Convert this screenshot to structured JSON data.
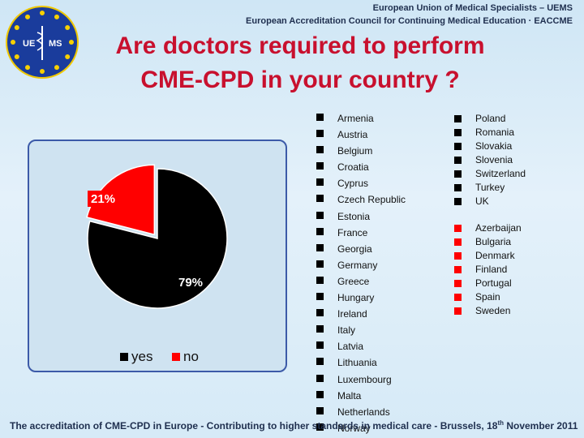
{
  "header": {
    "org_line1": "European Union of Medical Specialists – UEMS",
    "org_line2": "European Accreditation Council for Continuing Medical Education · EACCME",
    "logo_text_left": "UE",
    "logo_text_right": "MS"
  },
  "title": {
    "line1": "Are doctors required to perform",
    "line2": "CME-CPD in your country ?"
  },
  "chart_data": {
    "type": "pie",
    "slices": [
      {
        "name": "yes",
        "value": 79,
        "label": "79%",
        "color": "#000000"
      },
      {
        "name": "no",
        "value": 21,
        "label": "21%",
        "color": "#ff0000"
      }
    ],
    "legend": [
      "yes",
      "no"
    ],
    "legend_position": "bottom"
  },
  "countries": {
    "yes_col1": [
      "Armenia",
      "Austria",
      "Belgium",
      "Croatia",
      "Cyprus",
      "Czech Republic",
      "Estonia",
      "France",
      "Georgia",
      "Germany",
      "Greece",
      "Hungary",
      "Ireland",
      "Italy",
      "Latvia",
      "Lithuania",
      "Luxembourg",
      "Malta",
      "Netherlands",
      "Norway"
    ],
    "yes_col2": [
      "Poland",
      "Romania",
      "Slovakia",
      "Slovenia",
      "Switzerland",
      "Turkey",
      "UK"
    ],
    "no": [
      "Azerbaijan",
      "Bulgaria",
      "Denmark",
      "Finland",
      "Portugal",
      "Spain",
      "Sweden"
    ]
  },
  "colors": {
    "yes": "#000000",
    "no": "#ff0000",
    "title": "#c8102e"
  },
  "footer": {
    "text_before": "The accreditation of CME-CPD in Europe - Contributing to higher standards in medical care  - Brussels, 18",
    "sup": "th",
    "text_after": " November 2011"
  }
}
